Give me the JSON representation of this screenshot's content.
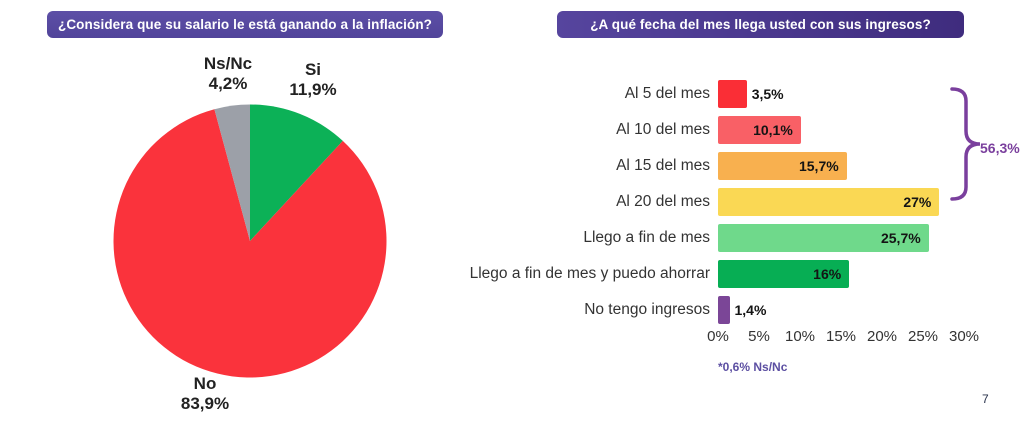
{
  "page": {
    "number": "7",
    "background": "#ffffff"
  },
  "banners": {
    "left_title": "¿Considera que su salario le está ganando a la inflación?",
    "right_title": "¿A qué fecha del mes llega usted con sus ingresos?",
    "left_color": "#574aa2",
    "right_color": "#3f2c7e"
  },
  "chart_data": [
    {
      "type": "pie",
      "title": "¿Considera que su salario le está ganando a la inflación?",
      "start_angle_deg": -90,
      "direction": "clockwise",
      "slices": [
        {
          "label": "Si",
          "value": 11.9,
          "display": "11,9%",
          "color": "#0cb157"
        },
        {
          "label": "No",
          "value": 83.9,
          "display": "83,9%",
          "color": "#fa333c"
        },
        {
          "label": "Ns/Nc",
          "value": 4.2,
          "display": "4,2%",
          "color": "#9ca0a8"
        }
      ]
    },
    {
      "type": "bar",
      "orientation": "horizontal",
      "title": "¿A qué fecha del mes llega usted con sus ingresos?",
      "categories": [
        "Al 5 del mes",
        "Al 10 del mes",
        "Al 15 del mes",
        "Al 20 del mes",
        "Llego a fin de mes",
        "Llego a fin de mes y puedo ahorrar",
        "No tengo ingresos"
      ],
      "values": [
        3.5,
        10.1,
        15.7,
        27,
        25.7,
        16,
        1.4
      ],
      "display_values": [
        "3,5%",
        "10,1%",
        "15,7%",
        "27%",
        "25,7%",
        "16%",
        "1,4%"
      ],
      "bar_colors": [
        "#fa2e36",
        "#f96066",
        "#f8b04f",
        "#fad854",
        "#6fd98b",
        "#07ae54",
        "#7b4697"
      ],
      "x_ticks": [
        "0%",
        "5%",
        "10%",
        "15%",
        "20%",
        "25%",
        "30%"
      ],
      "xlim": [
        0,
        30
      ],
      "grid": false,
      "legend": "none",
      "annotation": {
        "text": "56,3%",
        "color": "#7a3f9d",
        "covers_categories": [
          "Al 5 del mes",
          "Al 10 del mes",
          "Al 15 del mes",
          "Al 20 del mes"
        ]
      },
      "footnote": "*0,6% Ns/Nc"
    }
  ]
}
